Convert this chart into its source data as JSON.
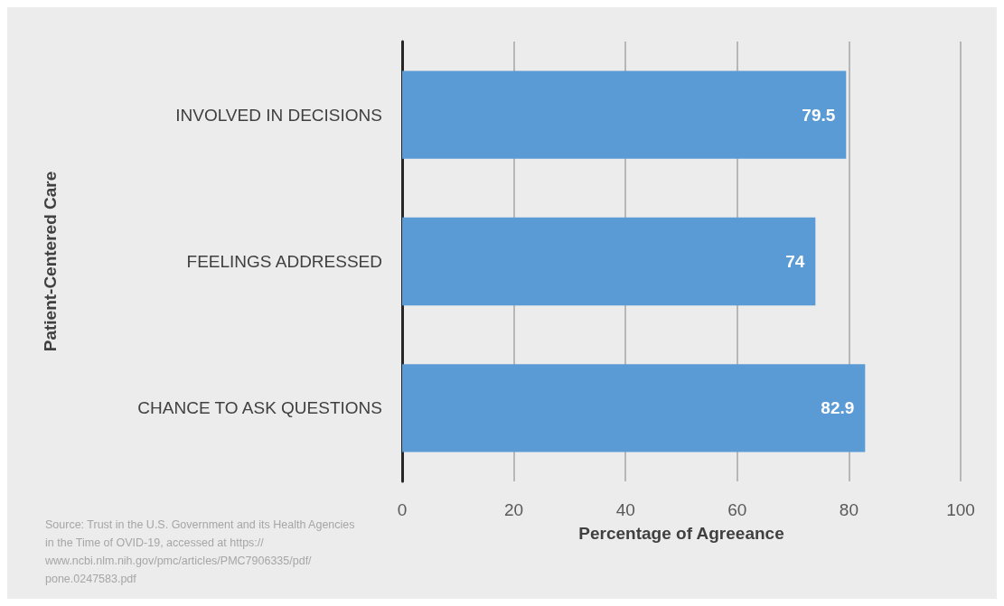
{
  "chart_data": {
    "type": "bar",
    "orientation": "horizontal",
    "categories": [
      "INVOLVED IN DECISIONS",
      "FEELINGS ADDRESSED",
      "CHANCE TO ASK QUESTIONS"
    ],
    "values": [
      79.5,
      74,
      82.9
    ],
    "color": "#5b9bd5",
    "xlim": [
      0,
      100
    ],
    "xticks": [
      0,
      20,
      40,
      60,
      80,
      100
    ],
    "xlabel": "Percentage of Agreeance",
    "ylabel": "Patient-Centered Care",
    "grid": "x",
    "data_labels": true,
    "annotations": [
      "Source: Trust in the U.S. Government and its Health Agencies in the Time of OVID-19, accessed at https://www.ncbi.nlm.nih.gov/pmc/articles/PMC7906335/pdf/pone.0247583.pdf"
    ]
  }
}
